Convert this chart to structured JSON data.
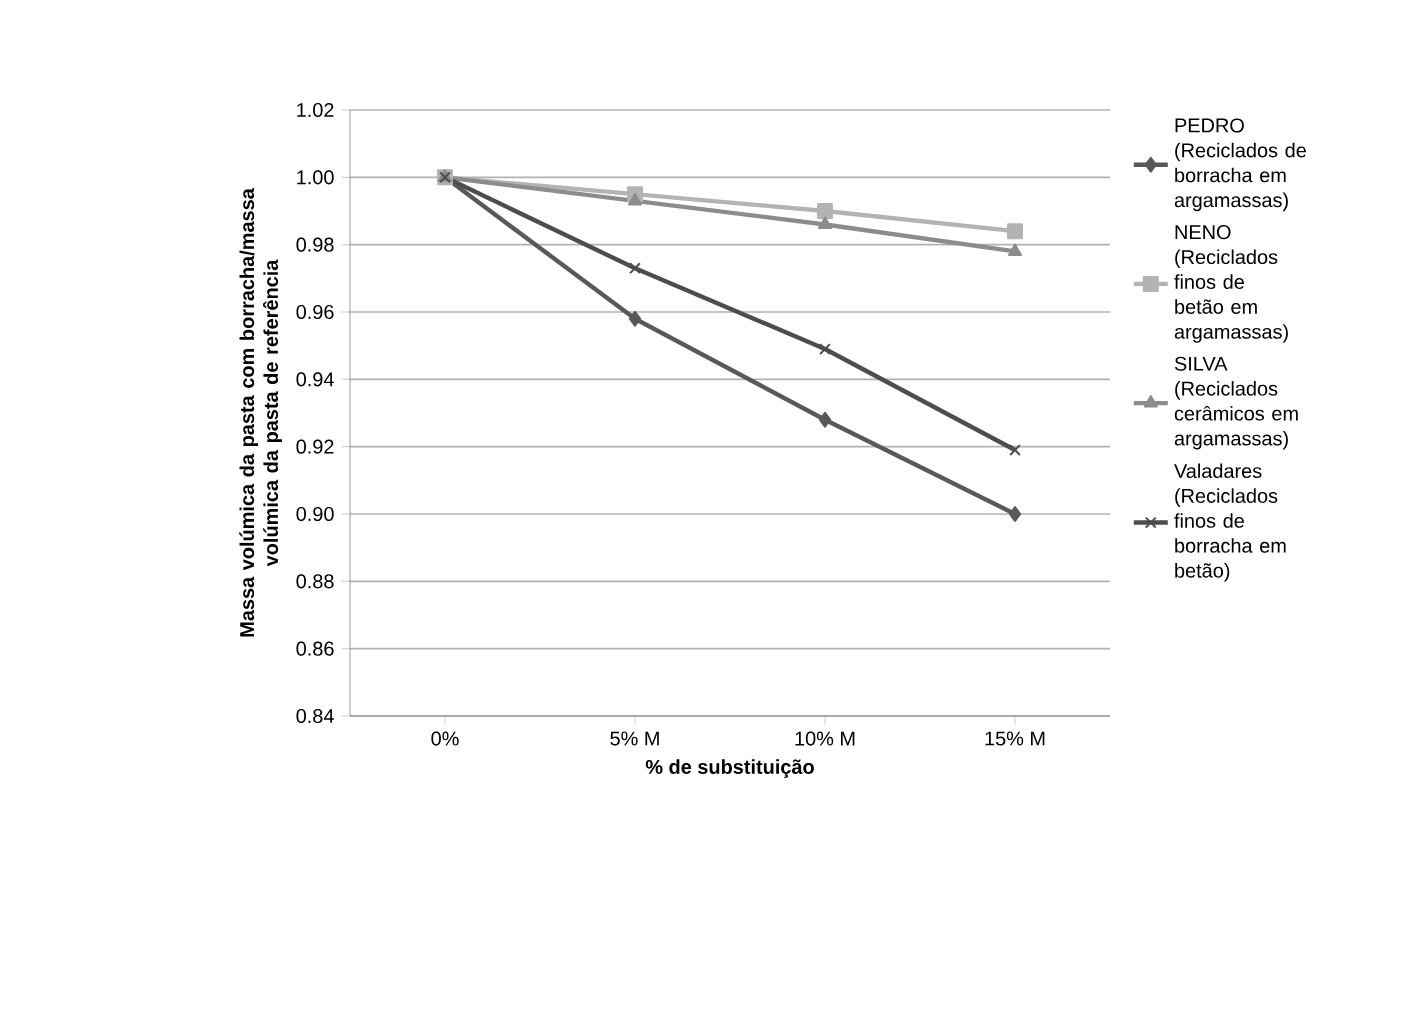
{
  "chart_data": {
    "type": "line",
    "xlabel": "% de substituição",
    "ylabel": "Massa volúmica da pasta com borracha/massa volúmica da pasta de referência",
    "categories": [
      "0%",
      "5% M",
      "10% M",
      "15% M"
    ],
    "series": [
      {
        "name": "PEDRO (Reciclados de borracha em argamassas)",
        "color": "#595959",
        "marker": "diamond",
        "values": [
          1.0,
          0.958,
          0.928,
          0.9
        ]
      },
      {
        "name": "NENO (Reciclados finos de betão em argamassas)",
        "color": "#b3b3b3",
        "marker": "square",
        "values": [
          1.0,
          0.995,
          0.99,
          0.984
        ]
      },
      {
        "name": "SILVA (Reciclados cerâmicos em argamassas)",
        "color": "#8c8c8c",
        "marker": "triangle",
        "values": [
          1.0,
          0.993,
          0.986,
          0.978
        ]
      },
      {
        "name": "Valadares (Reciclados finos de borracha em betão)",
        "color": "#4d4d4d",
        "marker": "cross",
        "values": [
          1.0,
          0.973,
          0.949,
          0.919
        ]
      }
    ],
    "ylim": [
      0.84,
      1.02
    ],
    "yticks": [
      0.84,
      0.86,
      0.88,
      {
        "value": 0.9,
        "label": "0.90"
      },
      0.92,
      0.94,
      0.96,
      0.98,
      {
        "value": 1.0,
        "label": "1.00"
      },
      1.02
    ],
    "grid": "y",
    "legend": "right",
    "line_style": "solid"
  }
}
